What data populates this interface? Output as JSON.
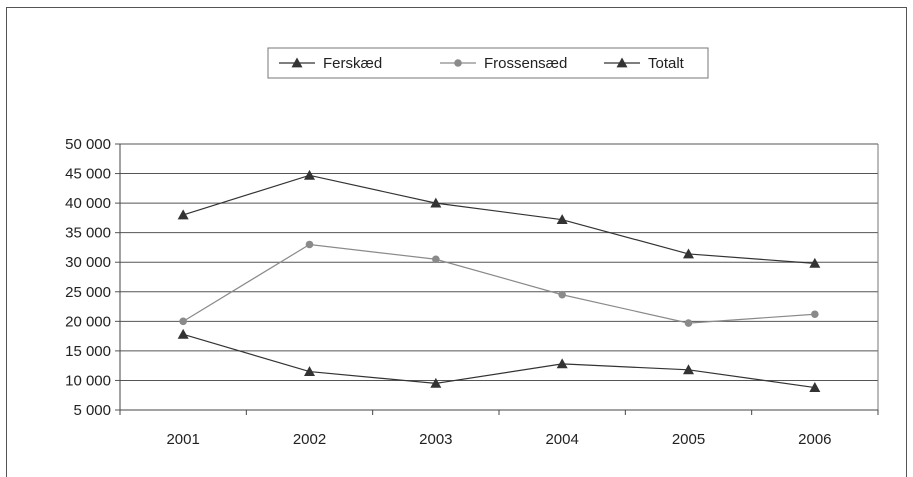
{
  "chart_data": {
    "type": "line",
    "title": "",
    "xlabel": "",
    "ylabel": "",
    "categories": [
      "2001",
      "2002",
      "2003",
      "2004",
      "2005",
      "2006"
    ],
    "ylim": [
      5000,
      50000
    ],
    "yticks": [
      5000,
      10000,
      15000,
      20000,
      25000,
      30000,
      35000,
      40000,
      45000,
      50000
    ],
    "ytick_labels": [
      "5 000",
      "10 000",
      "15 000",
      "20 000",
      "25 000",
      "30 000",
      "35 000",
      "40 000",
      "45 000",
      "50 000"
    ],
    "grid": "horizontal",
    "legend_position": "top-center",
    "series": [
      {
        "name": "Ferskæd",
        "marker": "triangle",
        "color": "#333333",
        "values": [
          17800,
          11500,
          9500,
          12800,
          11800,
          8800
        ]
      },
      {
        "name": "Frossensæd",
        "marker": "circle",
        "color": "#8a8a8a",
        "values": [
          20000,
          33000,
          30500,
          24500,
          19700,
          21200
        ]
      },
      {
        "name": "Totalt",
        "marker": "triangle",
        "color": "#333333",
        "values": [
          38000,
          44700,
          40000,
          37200,
          31400,
          29800
        ]
      }
    ]
  }
}
